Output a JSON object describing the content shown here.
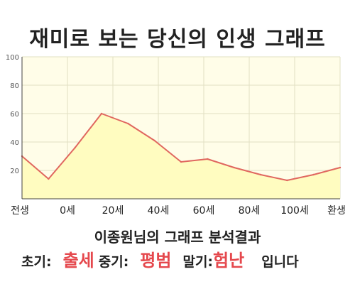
{
  "chart_data": {
    "type": "area",
    "title": "재미로 보는 당신의 인생 그래프",
    "x_ticks": [
      "전생",
      "0세",
      "20세",
      "40세",
      "60세",
      "80세",
      "100세",
      "환생"
    ],
    "ylim": [
      0,
      100
    ],
    "y_ticks": [
      20,
      40,
      60,
      80,
      100
    ],
    "grid": true,
    "series": [
      {
        "values": [
          30,
          14,
          36,
          60,
          53,
          41,
          26,
          28,
          22,
          17,
          13,
          17,
          22
        ]
      }
    ],
    "colors": {
      "line": "#e0675f",
      "fill": "#fffcc0",
      "bg": "#fffde8",
      "grid": "#e2e0c2"
    }
  },
  "summary": {
    "title": "이종원님의 그래프 분석결과",
    "early_label": "초기:",
    "early_value": "출세",
    "mid_label": "중기:",
    "mid_value": "평범",
    "late_label": "말기:",
    "late_value": "험난",
    "ending": "입니다"
  }
}
